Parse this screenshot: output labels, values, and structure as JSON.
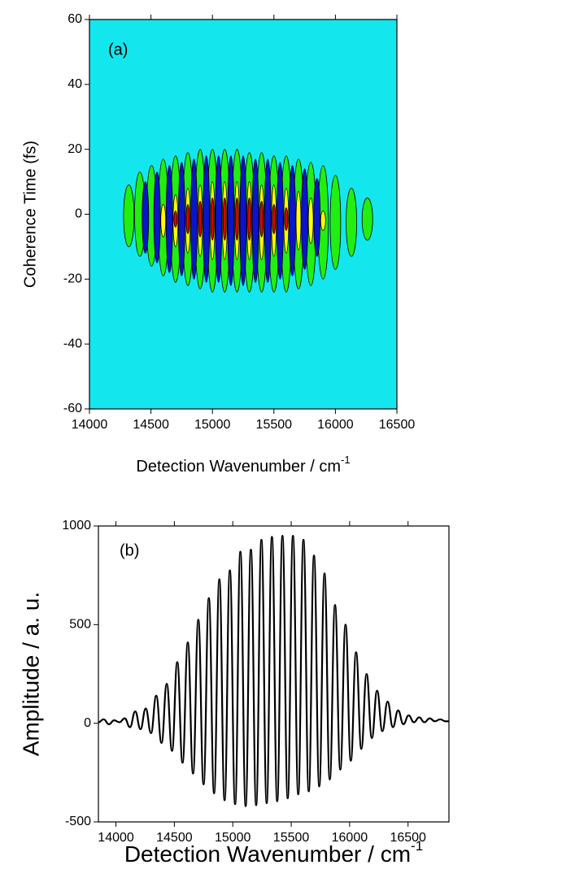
{
  "chart_data": [
    {
      "type": "contour",
      "label": "(a)",
      "x_label": "Detection Wavenumber / cm",
      "x_label_sup": "-1",
      "y_label": "Coherence Time (fs)",
      "xlim": [
        14000,
        16500
      ],
      "ylim": [
        -60,
        60
      ],
      "xticks": [
        14000,
        14500,
        15000,
        15500,
        16000,
        16500
      ],
      "yticks": [
        -60,
        -40,
        -20,
        0,
        20,
        40,
        60
      ],
      "background_color": "#14e6ee",
      "series": [
        {
          "color": "#22ee11",
          "x": [
            14320,
            14410,
            14505,
            14600,
            14700,
            14800,
            14900,
            15000,
            15100,
            15200,
            15300,
            15400,
            15500,
            15600,
            15700,
            15800,
            15900,
            16000,
            16130,
            16260
          ],
          "ytop": [
            9,
            13,
            15,
            17,
            18,
            19,
            20,
            20,
            20,
            20,
            19,
            19,
            18,
            18,
            17,
            16,
            15,
            12,
            8,
            5
          ],
          "ybottom": [
            -10,
            -13,
            -16,
            -19,
            -21,
            -22,
            -23,
            -24,
            -24,
            -24,
            -24,
            -24,
            -24,
            -24,
            -23,
            -22,
            -20,
            -17,
            -13,
            -8
          ]
        },
        {
          "color": "#0a14c8",
          "x": [
            14455,
            14550,
            14650,
            14750,
            14850,
            14950,
            15050,
            15150,
            15250,
            15350,
            15450,
            15550,
            15650,
            15750,
            15850
          ],
          "ytop": [
            10,
            13,
            15,
            16,
            17,
            18,
            18,
            18,
            18,
            17,
            17,
            16,
            15,
            14,
            11
          ],
          "ybottom": [
            -12,
            -15,
            -18,
            -19,
            -20,
            -21,
            -21,
            -22,
            -22,
            -21,
            -21,
            -20,
            -19,
            -17,
            -13
          ]
        },
        {
          "color": "#ffff00",
          "x": [
            14600,
            14700,
            14800,
            14900,
            15000,
            15100,
            15200,
            15300,
            15400,
            15500,
            15600,
            15700,
            15800,
            15900
          ],
          "ytop": [
            3,
            6,
            8,
            9,
            10,
            10,
            10,
            10,
            9,
            9,
            8,
            7,
            5,
            1
          ],
          "ybottom": [
            -7,
            -10,
            -12,
            -13,
            -14,
            -14,
            -14,
            -14,
            -14,
            -13,
            -12,
            -11,
            -9,
            -5
          ]
        },
        {
          "color": "#dd0000",
          "x": [
            14700,
            14800,
            14900,
            15000,
            15100,
            15200,
            15300,
            15400,
            15500,
            15600
          ],
          "ytop": [
            1,
            3,
            4,
            5,
            5,
            5,
            5,
            4,
            3,
            2
          ],
          "ybottom": [
            -4,
            -6,
            -7,
            -8,
            -8,
            -8,
            -8,
            -7,
            -6,
            -5
          ]
        }
      ]
    },
    {
      "type": "line",
      "label": "(b)",
      "x_label": "Detection Wavenumber / cm",
      "x_label_sup": "-1",
      "y_label": "Amplitude / a. u.",
      "xlim": [
        13850,
        16850
      ],
      "ylim": [
        -500,
        1000
      ],
      "xticks": [
        14000,
        14500,
        15000,
        15500,
        16000,
        16500
      ],
      "yticks": [
        -500,
        0,
        500,
        1000
      ],
      "color": "#000000",
      "x": [
        13850,
        13895,
        13940,
        13985,
        14030,
        14075,
        14120,
        14165,
        14210,
        14255,
        14300,
        14345,
        14390,
        14435,
        14480,
        14525,
        14570,
        14615,
        14660,
        14705,
        14750,
        14795,
        14840,
        14885,
        14930,
        14975,
        15020,
        15065,
        15110,
        15155,
        15200,
        15245,
        15290,
        15335,
        15380,
        15425,
        15470,
        15515,
        15560,
        15605,
        15650,
        15695,
        15740,
        15785,
        15830,
        15875,
        15920,
        15965,
        16010,
        16055,
        16100,
        16145,
        16190,
        16235,
        16280,
        16325,
        16370,
        16415,
        16460,
        16505,
        16550,
        16595,
        16640,
        16685,
        16730,
        16775,
        16820,
        16850
      ],
      "values": [
        5,
        20,
        -5,
        15,
        5,
        25,
        -20,
        60,
        -30,
        75,
        -50,
        140,
        -100,
        200,
        -140,
        310,
        -200,
        410,
        -255,
        525,
        -310,
        635,
        -355,
        730,
        -390,
        775,
        -410,
        870,
        -420,
        880,
        -415,
        930,
        -405,
        945,
        -395,
        950,
        -380,
        950,
        -360,
        930,
        -345,
        850,
        -320,
        760,
        -285,
        600,
        -235,
        500,
        -190,
        360,
        -130,
        250,
        -75,
        165,
        -40,
        110,
        -20,
        65,
        -5,
        40,
        5,
        30,
        5,
        25,
        10,
        20,
        10,
        10
      ]
    }
  ]
}
